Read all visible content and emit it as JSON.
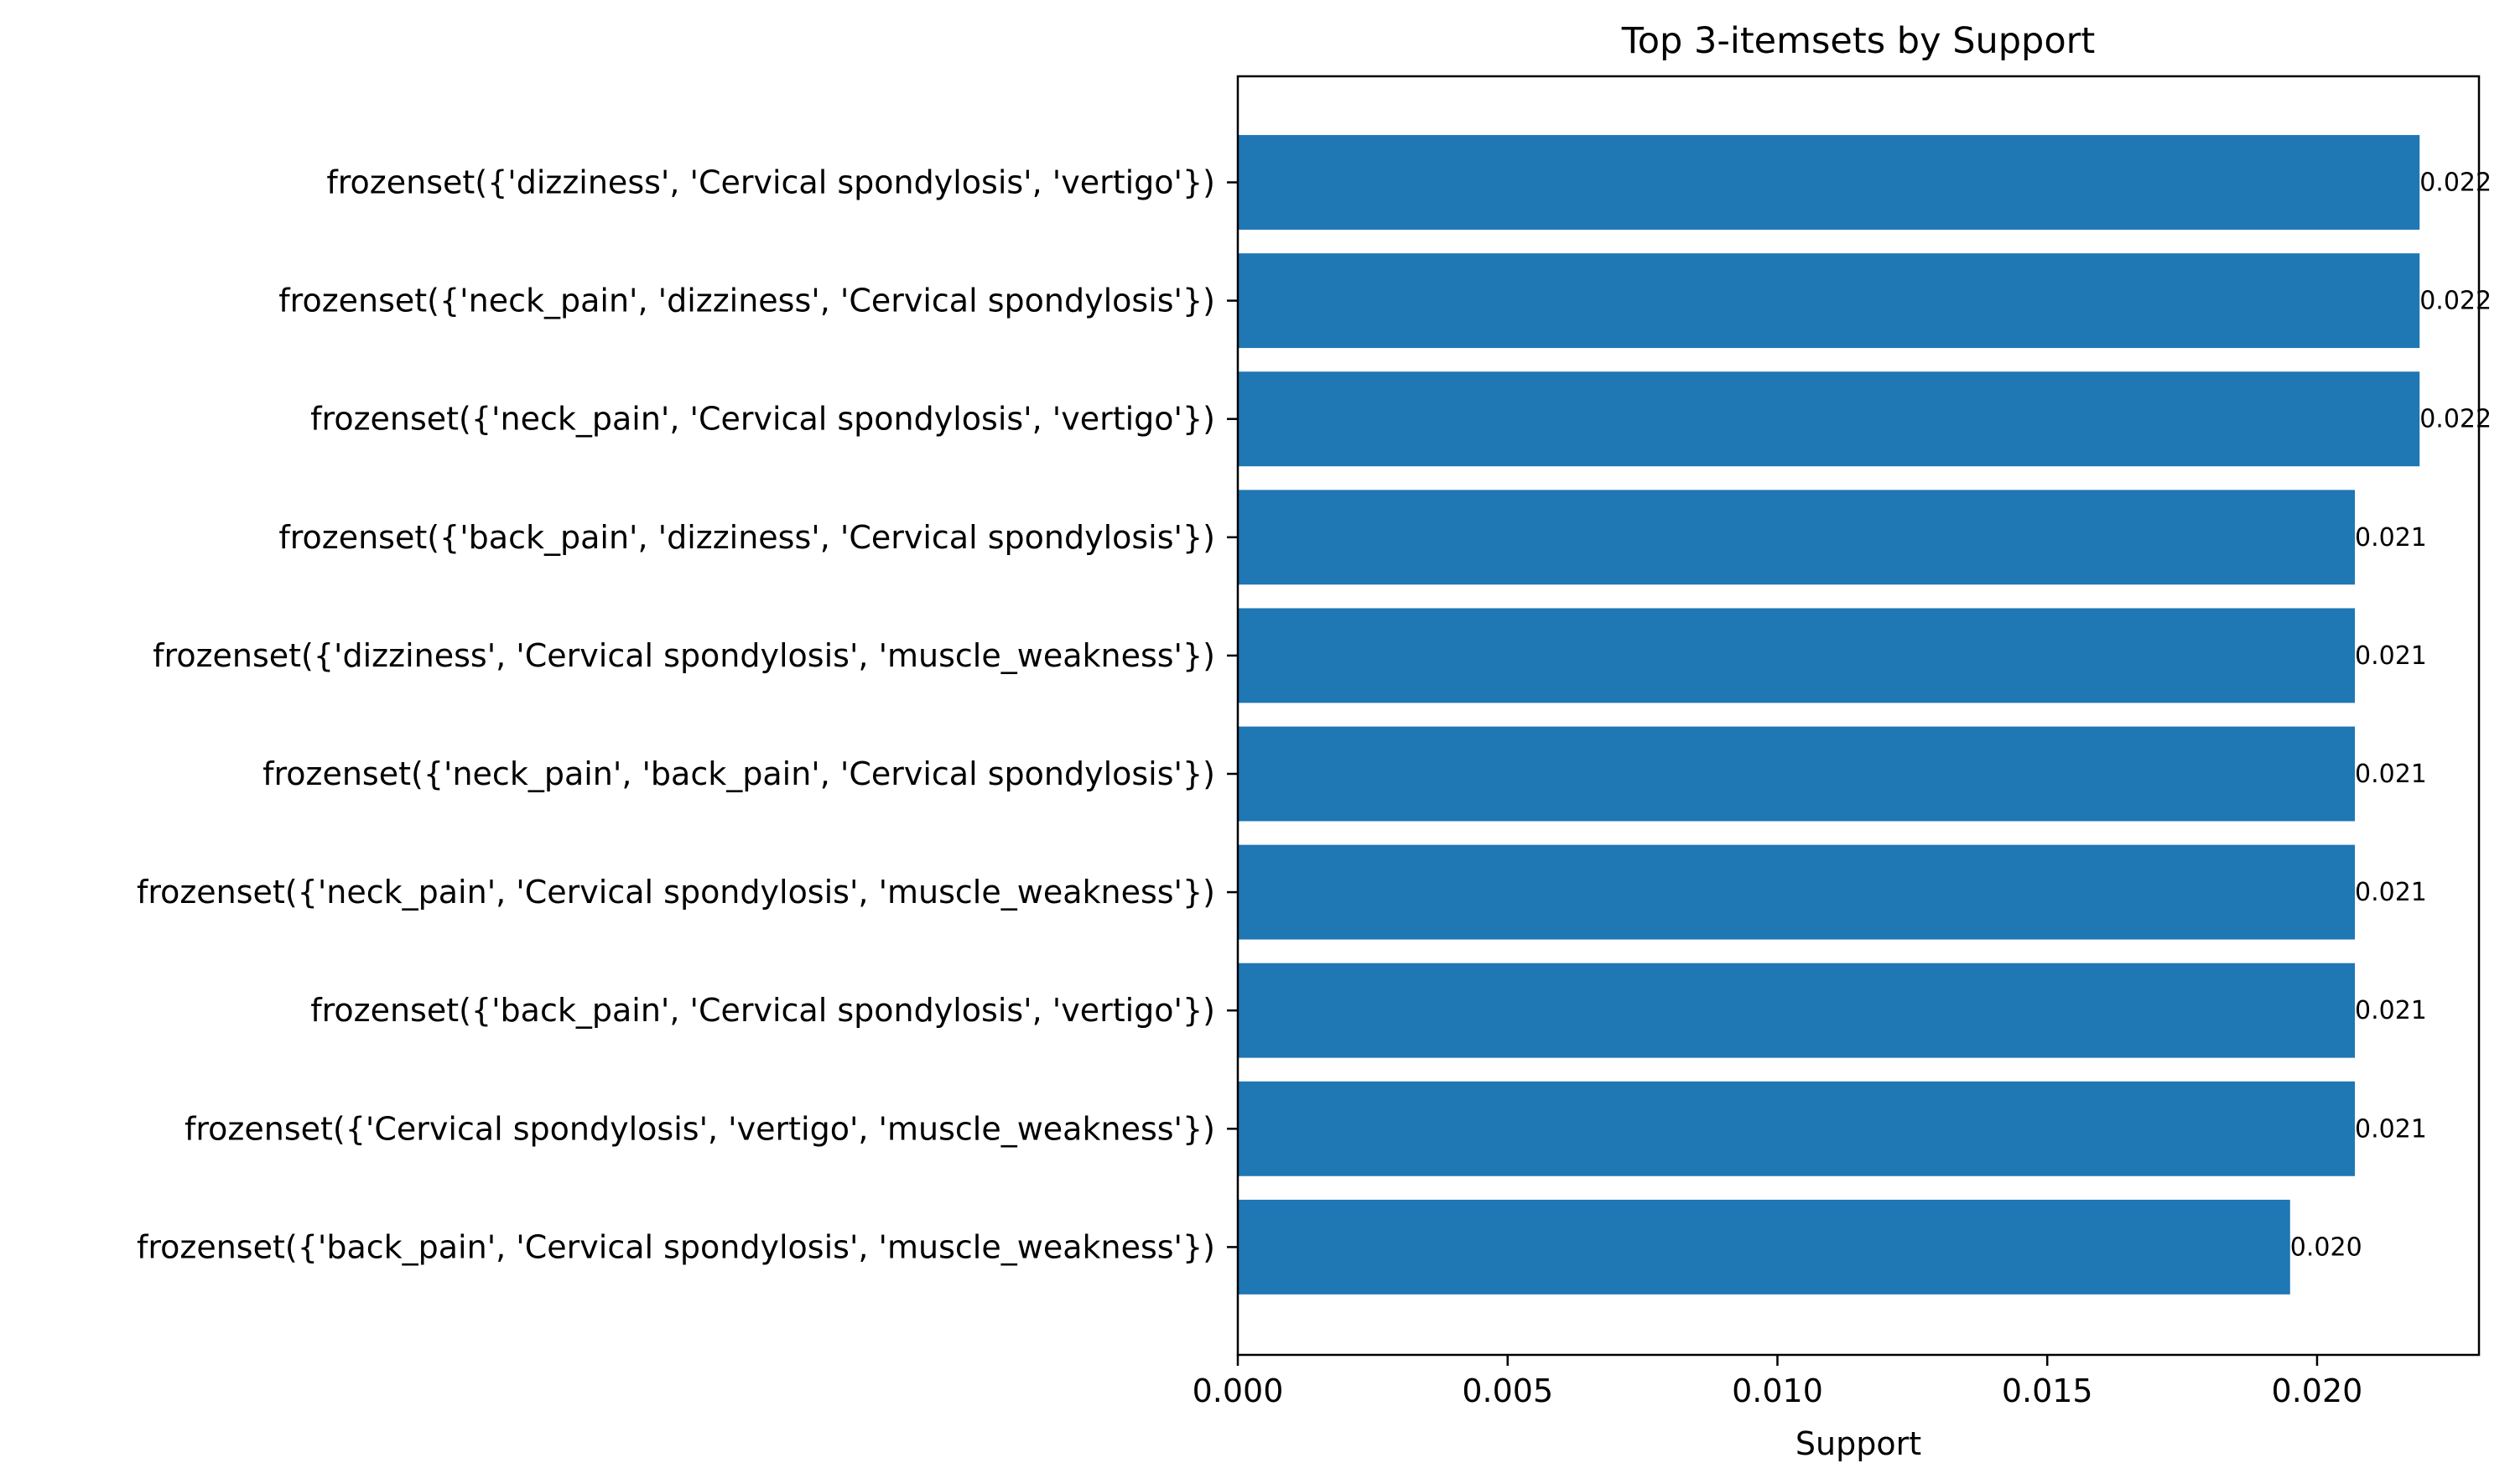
{
  "chart_data": {
    "type": "bar",
    "orientation": "horizontal",
    "title": "Top 3-itemsets by Support",
    "xlabel": "Support",
    "ylabel": "",
    "xlim": [
      0,
      0.023
    ],
    "xticks": [
      "0.000",
      "0.005",
      "0.010",
      "0.015",
      "0.020"
    ],
    "grid": false,
    "bar_color": "#1f77b4",
    "categories": [
      "frozenset({'dizziness', 'Cervical spondylosis', 'vertigo'})",
      "frozenset({'neck_pain', 'dizziness', 'Cervical spondylosis'})",
      "frozenset({'neck_pain', 'Cervical spondylosis', 'vertigo'})",
      "frozenset({'back_pain', 'dizziness', 'Cervical spondylosis'})",
      "frozenset({'dizziness', 'Cervical spondylosis', 'muscle_weakness'})",
      "frozenset({'neck_pain', 'back_pain', 'Cervical spondylosis'})",
      "frozenset({'neck_pain', 'Cervical spondylosis', 'muscle_weakness'})",
      "frozenset({'back_pain', 'Cervical spondylosis', 'vertigo'})",
      "frozenset({'Cervical spondylosis', 'vertigo', 'muscle_weakness'})",
      "frozenset({'back_pain', 'Cervical spondylosis', 'muscle_weakness'})"
    ],
    "values": [
      0.0219,
      0.0219,
      0.0219,
      0.0207,
      0.0207,
      0.0207,
      0.0207,
      0.0207,
      0.0207,
      0.0195
    ],
    "data_labels": [
      "0.022",
      "0.022",
      "0.022",
      "0.021",
      "0.021",
      "0.021",
      "0.021",
      "0.021",
      "0.021",
      "0.020"
    ]
  }
}
